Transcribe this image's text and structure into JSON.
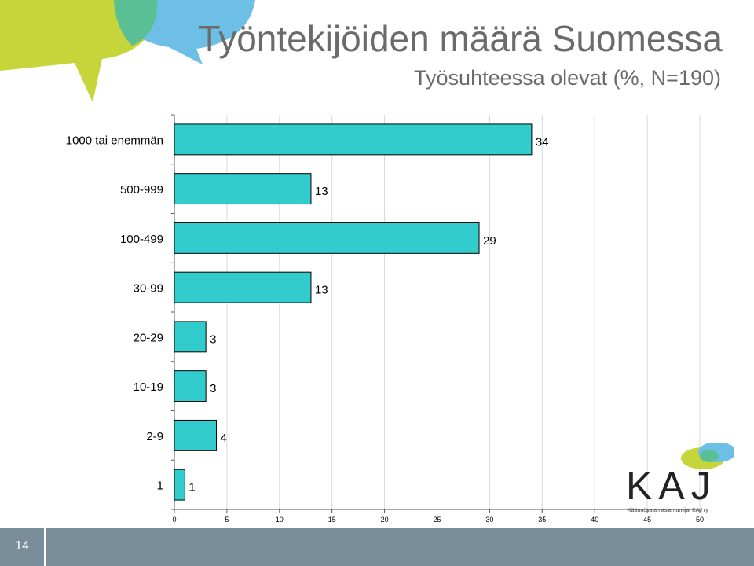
{
  "title": "Työntekijöiden määrä Suomessa",
  "subtitle": "Työsuhteessa olevat (%, N=190)",
  "page_number": "14",
  "logo": {
    "wordmark": "KAJ",
    "tagline": "Käännösalan asiantuntijat KAJ ry"
  },
  "colors": {
    "bar": "#33cccc",
    "bar_outline": "#000000",
    "grid": "#d9d9d9",
    "title": "#6b6b6b",
    "footer": "#7a8d9b",
    "bubble_green": "#c6d63a",
    "bubble_blue": "#6dbfe6",
    "bubble_teal": "#5bbf96"
  },
  "chart_data": {
    "type": "bar",
    "orientation": "horizontal",
    "categories": [
      "1000 tai enemmän",
      "500-999",
      "100-499",
      "30-99",
      "20-29",
      "10-19",
      "2-9",
      "1"
    ],
    "values": [
      34,
      13,
      29,
      13,
      3,
      3,
      4,
      1
    ],
    "data_labels": [
      "34",
      "13",
      "29",
      "13",
      "3",
      "3",
      "4",
      "1"
    ],
    "xlim": [
      0,
      50
    ],
    "x_ticks": [
      0,
      5,
      10,
      15,
      20,
      25,
      30,
      35,
      40,
      45,
      50
    ],
    "grid": true,
    "title": "",
    "xlabel": "",
    "ylabel": ""
  }
}
